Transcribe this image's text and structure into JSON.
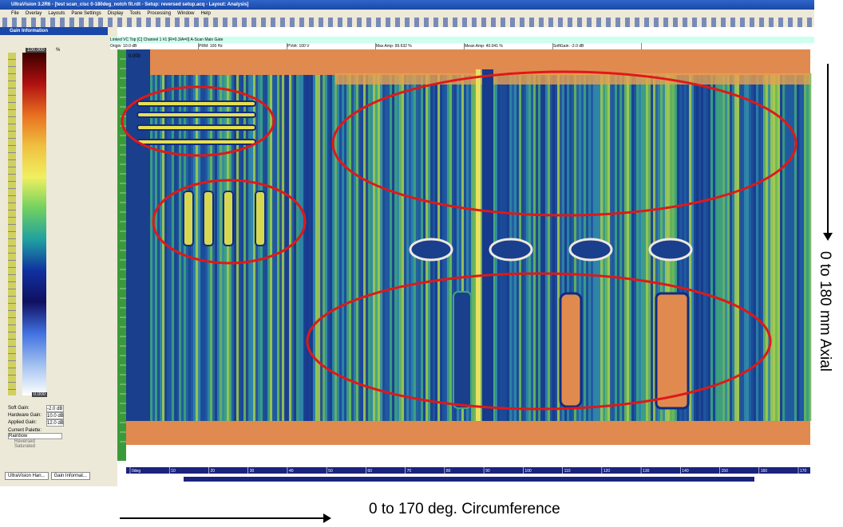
{
  "window": {
    "title": "UltraVision 3.2R6 - [test scan_cisc 0-180deg_notch fit.rdt - Setup: reversed setup.acq - Layout: Analysis]"
  },
  "menu": [
    "File",
    "Overlay",
    "Layouts",
    "Pane Settings",
    "Display",
    "Tools",
    "Processing",
    "Window",
    "Help"
  ],
  "gain_panel": {
    "title": "Gain Information",
    "scale_max": "100.000",
    "scale_min": "0.000",
    "unit": "%",
    "rows": [
      {
        "label": "Soft Gain:",
        "value": "-2.0 dB"
      },
      {
        "label": "Hardware Gain:",
        "value": "10.0 dB"
      },
      {
        "label": "Applied Gain:",
        "value": "12.0 dB"
      }
    ],
    "palette_label": "Current Palette:",
    "palette": "Rainbow",
    "options": [
      "Reversed",
      "Saturated"
    ]
  },
  "info_bar": {
    "channel": "Linked VC Top [C] Channel 1 #1 [R=0.3/A=0] A-Scan Main Gate",
    "fields": [
      "Origin: 10.0 dB",
      "PRM: 100 Hz",
      "PVolt: 100 V",
      "Max Amp: 99.632 %",
      "Mean Amp: 40.041 %",
      "SoftGain: -2.0 dB"
    ]
  },
  "scan": {
    "corner_label": "0.000",
    "x_labels": [
      "0deg",
      "10",
      "20",
      "30",
      "40",
      "50",
      "60",
      "70",
      "80",
      "90",
      "100",
      "110",
      "120",
      "130",
      "140",
      "150",
      "160",
      "170"
    ]
  },
  "tabs": [
    "UltraVision Han...",
    "Gain Informat..."
  ],
  "annotations": {
    "axial": "0 to 180 mm Axial",
    "circumference": "0 to 170 deg. Circumference"
  }
}
